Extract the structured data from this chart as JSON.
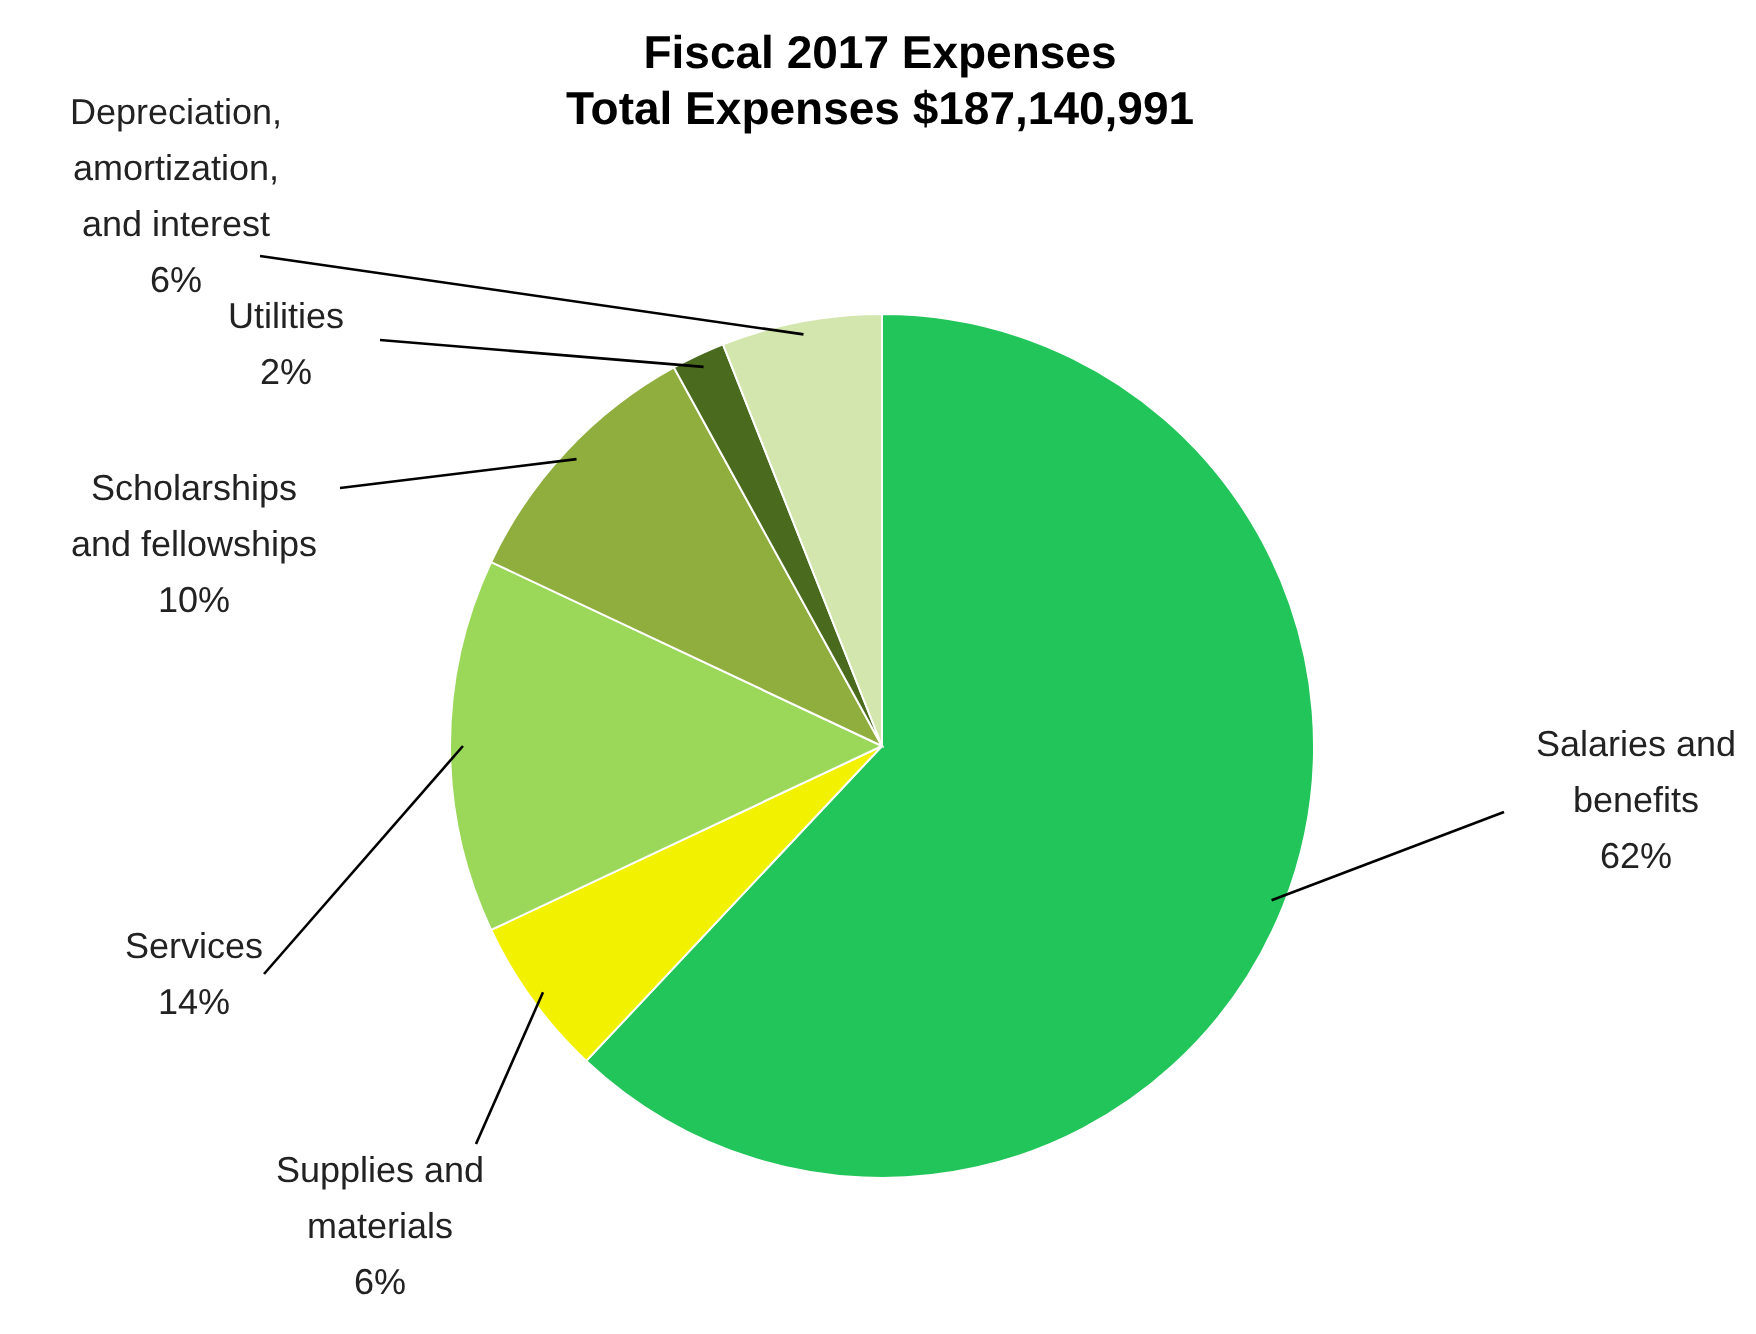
{
  "chart_data": {
    "type": "pie",
    "title": "Fiscal 2017 Expenses",
    "subtitle": "Total Expenses $187,140,991",
    "categories": [
      "Salaries and benefits",
      "Supplies and materials",
      "Services",
      "Scholarships and fellowships",
      "Utilities",
      "Depreciation, amortization, and interest"
    ],
    "values": [
      62,
      6,
      14,
      10,
      2,
      6
    ],
    "value_labels": [
      "62%",
      "6%",
      "14%",
      "10%",
      "2%",
      "6%"
    ],
    "colors": [
      "#22c55a",
      "#f2f200",
      "#9bd85a",
      "#8fae3e",
      "#4a6b1e",
      "#d3e6ae"
    ]
  }
}
